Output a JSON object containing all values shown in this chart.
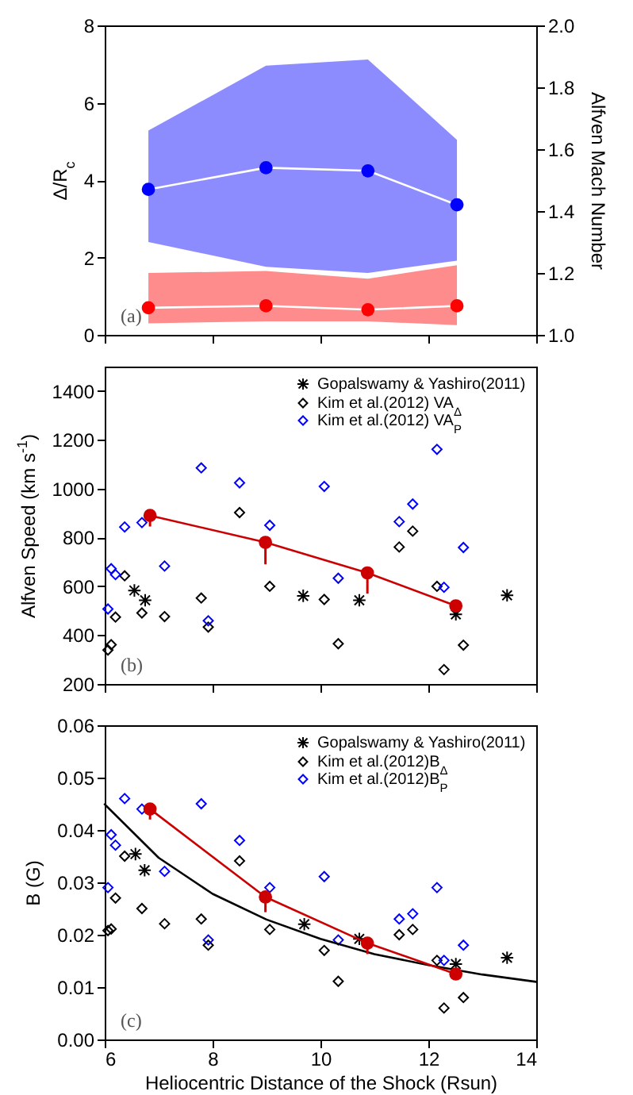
{
  "chart_data": [
    {
      "type": "line",
      "ylabel": "Δ/R$_{c}$",
      "y2label": "Alfven Mach Number",
      "xlim": [
        6,
        14
      ],
      "xticks": [
        6,
        8,
        10,
        12,
        14
      ],
      "ylim": [
        0,
        8
      ],
      "yticks": [
        0,
        2,
        4,
        6,
        8
      ],
      "y2lim": [
        1.0,
        2.0
      ],
      "y2ticks": [
        {
          "value": 1.0,
          "label": "1.0"
        },
        1.2,
        1.4,
        1.6,
        1.8,
        {
          "value": 2.0,
          "label": "2.0"
        }
      ],
      "tick_labels": "y",
      "marker": "circle",
      "annotations": [
        "(a)"
      ],
      "x": [
        6.81,
        8.99,
        10.88,
        12.53
      ],
      "series": [
        {
          "color": "#0000ff",
          "axis": "y2",
          "values": [
            1.47,
            1.54,
            1.53,
            1.42
          ],
          "lower": [
            1.3,
            1.22,
            1.2,
            1.24
          ],
          "upper": [
            1.66,
            1.87,
            1.89,
            1.63
          ]
        },
        {
          "color": "#ff0000",
          "values": [
            0.7,
            0.75,
            0.65,
            0.75
          ],
          "lower": [
            0.3,
            0.35,
            0.35,
            0.25
          ],
          "upper": [
            1.6,
            1.65,
            1.45,
            1.8
          ]
        }
      ]
    },
    {
      "type": "scatter",
      "ylabel": "Alfven Speed (km s$^{-1}$)",
      "xlim": [
        6,
        14
      ],
      "xticks": [
        6,
        8,
        10,
        12,
        14
      ],
      "ylim": [
        200,
        1500
      ],
      "yticks": [
        200,
        400,
        600,
        800,
        1000,
        1200,
        1400
      ],
      "tick_labels": "y",
      "legend": "top right",
      "annotations": [
        "(b)"
      ],
      "series": [
        {
          "name": "Gopalswamy & Yashiro(2011)",
          "color": "#000000",
          "marker": "cross",
          "x": [
            6.55,
            6.75,
            9.68,
            10.72,
            12.51,
            13.46
          ],
          "values": [
            583,
            543,
            561,
            543,
            485,
            563
          ]
        },
        {
          "name": "Kim et al.(2012) VA$_{Δ}$",
          "color": "#000000",
          "marker": "diamond",
          "x": [
            6.06,
            6.12,
            6.2,
            6.37,
            6.69,
            7.11,
            7.79,
            7.92,
            8.5,
            9.06,
            10.07,
            10.33,
            11.46,
            11.71,
            12.16,
            12.29,
            12.65
          ],
          "values": [
            339,
            361,
            474,
            643,
            491,
            476,
            552,
            433,
            902,
            600,
            546,
            365,
            761,
            826,
            600,
            259,
            359
          ]
        },
        {
          "name": "Kim et al.(2012) VA$_{P}$",
          "color": "#0000ff",
          "marker": "diamond",
          "x": [
            6.06,
            6.12,
            6.2,
            6.37,
            6.69,
            7.11,
            7.79,
            7.92,
            8.5,
            9.06,
            10.07,
            10.33,
            11.46,
            11.71,
            12.16,
            12.29,
            12.65
          ],
          "values": [
            507,
            672,
            648,
            843,
            861,
            683,
            1085,
            459,
            1024,
            850,
            1009,
            633,
            865,
            937,
            1161,
            596,
            759
          ]
        },
        {
          "type": "line",
          "color": "#cc0000",
          "marker": "circle",
          "x": [
            6.84,
            8.98,
            10.87,
            12.51
          ],
          "values": [
            890,
            780,
            655,
            520
          ],
          "errors": [
            [
              845,
              890
            ],
            [
              690,
              780
            ],
            [
              570,
              655
            ],
            null
          ]
        }
      ]
    },
    {
      "type": "scatter",
      "ylabel": "B (G)",
      "xlabel": "Heliocentric Distance of the Shock (Rsun)",
      "xlim": [
        6,
        14
      ],
      "xticks": [
        6,
        8,
        10,
        12,
        14
      ],
      "ylim": [
        0,
        0.06
      ],
      "yticks": [
        {
          "value": 0,
          "label": "0.00"
        },
        {
          "value": 0.01,
          "label": "0.01"
        },
        {
          "value": 0.02,
          "label": "0.02"
        },
        {
          "value": 0.03,
          "label": "0.03"
        },
        {
          "value": 0.04,
          "label": "0.04"
        },
        {
          "value": 0.05,
          "label": "0.05"
        },
        {
          "value": 0.06,
          "label": "0.06"
        }
      ],
      "legend": "top right",
      "annotations": [
        "(c)"
      ],
      "series": [
        {
          "name": "Gopalswamy & Yashiro(2011)",
          "color": "#000000",
          "marker": "cross",
          "x": [
            6.57,
            6.74,
            9.7,
            10.72,
            12.51,
            13.46
          ],
          "values": [
            0.0354,
            0.0323,
            0.022,
            0.0192,
            0.0144,
            0.0156
          ]
        },
        {
          "name": "Kim et al.(2012)B$_{Δ}$",
          "color": "#000000",
          "marker": "diamond",
          "x": [
            6.06,
            6.12,
            6.2,
            6.37,
            6.69,
            7.11,
            7.79,
            7.92,
            8.5,
            9.06,
            10.07,
            10.33,
            11.46,
            11.71,
            12.16,
            12.29,
            12.65
          ],
          "values": [
            0.0208,
            0.0211,
            0.027,
            0.035,
            0.025,
            0.0221,
            0.023,
            0.018,
            0.0341,
            0.021,
            0.017,
            0.0111,
            0.02,
            0.021,
            0.0151,
            0.006,
            0.008
          ]
        },
        {
          "name": "Kim et al.(2012)B$_{P}$",
          "color": "#0000ff",
          "marker": "diamond",
          "x": [
            6.06,
            6.12,
            6.2,
            6.37,
            6.69,
            7.11,
            7.79,
            7.92,
            8.5,
            9.06,
            10.07,
            10.33,
            11.46,
            11.71,
            12.16,
            12.29,
            12.65
          ],
          "values": [
            0.029,
            0.0391,
            0.0371,
            0.046,
            0.044,
            0.0321,
            0.045,
            0.019,
            0.038,
            0.029,
            0.0311,
            0.019,
            0.023,
            0.024,
            0.029,
            0.0151,
            0.018
          ]
        },
        {
          "type": "line",
          "color": "#000000",
          "marker": "none",
          "x": [
            6,
            7,
            8,
            9,
            10,
            11,
            12,
            13,
            14
          ],
          "values": [
            0.0449,
            0.0347,
            0.0278,
            0.0229,
            0.0192,
            0.0163,
            0.0142,
            0.0124,
            0.011
          ]
        },
        {
          "type": "line",
          "color": "#cc0000",
          "marker": "circle",
          "x": [
            6.84,
            8.98,
            10.87,
            12.51
          ],
          "values": [
            0.044,
            0.0272,
            0.0184,
            0.0125
          ],
          "errors": [
            [
              0.042,
              0.044
            ],
            [
              0.0243,
              0.0272
            ],
            [
              0.0163,
              0.0184
            ],
            null
          ]
        }
      ]
    }
  ]
}
